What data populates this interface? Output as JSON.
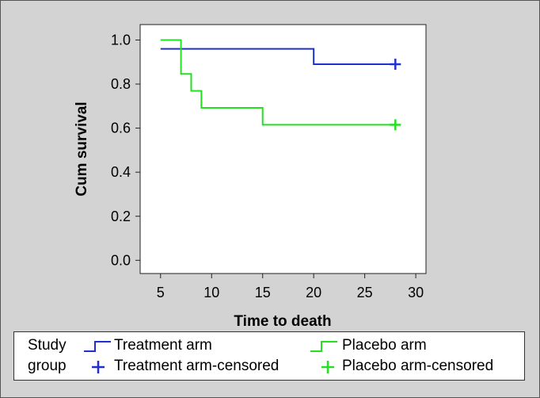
{
  "chart_data": {
    "type": "line",
    "xlabel": "Time to death",
    "ylabel": "Cum survival",
    "xlim": [
      3,
      31
    ],
    "ylim": [
      -0.06,
      1.07
    ],
    "x_ticks": [
      "5",
      "10",
      "15",
      "20",
      "25",
      "30"
    ],
    "y_ticks": [
      "0.0",
      "0.2",
      "0.4",
      "0.6",
      "0.8",
      "1.0"
    ],
    "grid": false,
    "legend_position": "bottom",
    "series": [
      {
        "name": "Treatment arm",
        "color": "#1f2fd0",
        "step_points": [
          [
            5,
            0.96
          ],
          [
            20,
            0.96
          ],
          [
            20,
            0.89
          ],
          [
            28,
            0.89
          ]
        ],
        "censored": [
          [
            28,
            0.89
          ]
        ]
      },
      {
        "name": "Placebo arm",
        "color": "#22e022",
        "step_points": [
          [
            5,
            1.0
          ],
          [
            7,
            1.0
          ],
          [
            7,
            0.846
          ],
          [
            8,
            0.846
          ],
          [
            8,
            0.769
          ],
          [
            9,
            0.769
          ],
          [
            9,
            0.692
          ],
          [
            15,
            0.692
          ],
          [
            15,
            0.615
          ],
          [
            28,
            0.615
          ]
        ],
        "censored": [
          [
            28,
            0.615
          ]
        ]
      }
    ]
  },
  "legend": {
    "title_line1": "Study",
    "title_line2": "group",
    "items": [
      {
        "label": "Treatment arm"
      },
      {
        "label": "Placebo arm"
      },
      {
        "label": "Treatment arm-censored"
      },
      {
        "label": "Placebo arm-censored"
      }
    ]
  }
}
